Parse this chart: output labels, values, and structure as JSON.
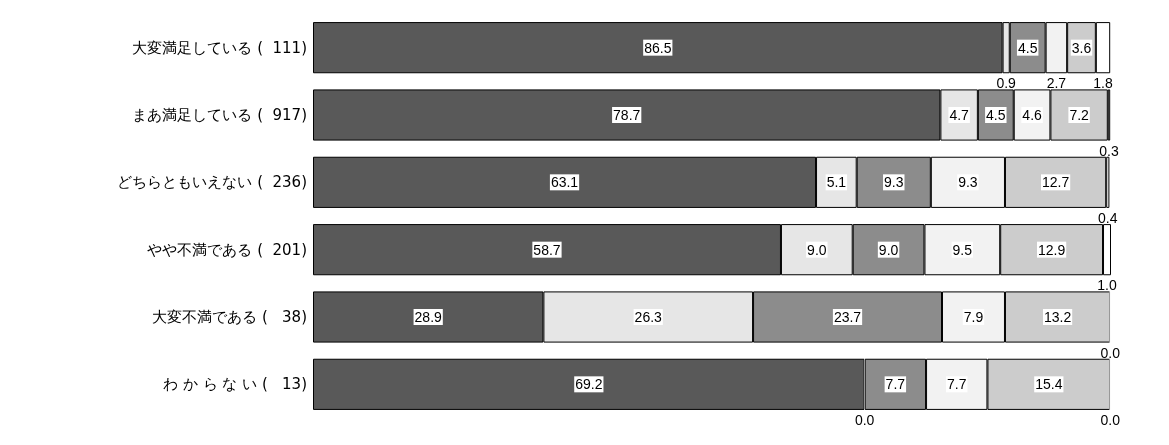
{
  "chart_data": {
    "type": "bar",
    "orientation": "horizontal",
    "stacked": true,
    "categories": [
      "大変満足している (  111)",
      "まあ満足している (  917)",
      "どちらともいえない (  236)",
      "やや不満である (  201)",
      "大変不満である (   38)",
      "わ か ら な い (   13)"
    ],
    "series": [
      {
        "color": "#595959",
        "values": [
          86.5,
          78.7,
          63.1,
          58.7,
          28.9,
          69.2
        ],
        "value_labels": [
          "86.5",
          "78.7",
          "63.1",
          "58.7",
          "28.9",
          "69.2"
        ]
      },
      {
        "color": "#e6e6e6",
        "values": [
          0.9,
          4.7,
          5.1,
          9.0,
          26.3,
          0.0
        ],
        "value_labels": [
          "0.9",
          "4.7",
          "5.1",
          "9.0",
          "26.3",
          "0.0"
        ]
      },
      {
        "color": "#8c8c8c",
        "values": [
          4.5,
          4.5,
          9.3,
          9.0,
          23.7,
          7.7
        ],
        "value_labels": [
          "4.5",
          "4.5",
          "9.3",
          "9.0",
          "23.7",
          "7.7"
        ]
      },
      {
        "color": "#f2f2f2",
        "values": [
          2.7,
          4.6,
          9.3,
          9.5,
          7.9,
          7.7
        ],
        "value_labels": [
          "2.7",
          "4.6",
          "9.3",
          "9.5",
          "7.9",
          "7.7"
        ]
      },
      {
        "color": "#cccccc",
        "values": [
          3.6,
          7.2,
          12.7,
          12.9,
          13.2,
          15.4
        ],
        "value_labels": [
          "3.6",
          "7.2",
          "12.7",
          "12.9",
          "13.2",
          "15.4"
        ]
      },
      {
        "color": "#ffffff",
        "values": [
          1.8,
          0.3,
          0.4,
          1.0,
          0.0,
          0.0
        ],
        "value_labels": [
          "1.8",
          "0.3",
          "0.4",
          "1.0",
          "0.0",
          "0.0"
        ]
      }
    ]
  }
}
